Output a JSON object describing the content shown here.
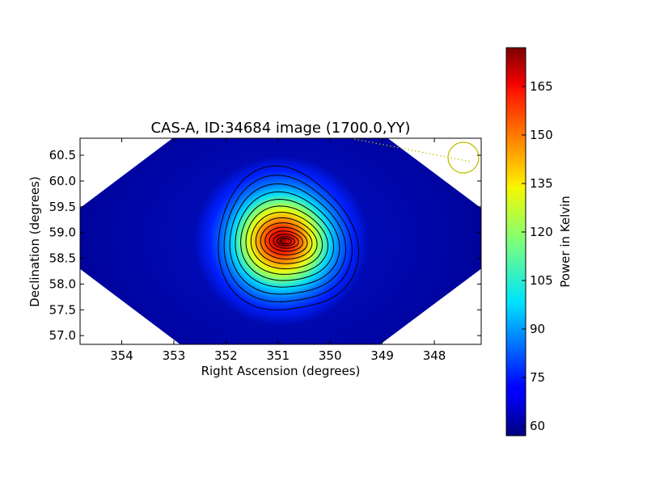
{
  "chart_data": {
    "type": "heatmap",
    "title": "CAS-A, ID:34684 image (1700.0,YY)",
    "xlabel": "Right Ascension (degrees)",
    "ylabel": "Declination (degrees)",
    "xlim": [
      354.8,
      347.1
    ],
    "ylim": [
      56.83,
      60.83
    ],
    "x_ticks": [
      "354",
      "353",
      "352",
      "351",
      "350",
      "349",
      "348"
    ],
    "y_ticks": [
      "57.0",
      "57.5",
      "58.0",
      "58.5",
      "59.0",
      "59.5",
      "60.0",
      "60.5"
    ],
    "colorbar": {
      "label": "Power in Kelvin",
      "colormap": "jet",
      "range": [
        57,
        177
      ],
      "ticks": [
        "60",
        "75",
        "90",
        "105",
        "120",
        "135",
        "150",
        "165"
      ]
    },
    "source": {
      "name": "CAS-A",
      "ra": 350.85,
      "dec": 58.83,
      "peak_kelvin": 177
    },
    "background_kelvin": 60,
    "contours": {
      "count": 14,
      "color": "#000000"
    },
    "beam_marker": {
      "ra": 347.65,
      "dec": 60.46,
      "color": "#bfbf00"
    },
    "colors": {
      "background": "#ffffff",
      "low": "#00008f",
      "high": "#800000",
      "beam": "#bfbf00"
    }
  }
}
